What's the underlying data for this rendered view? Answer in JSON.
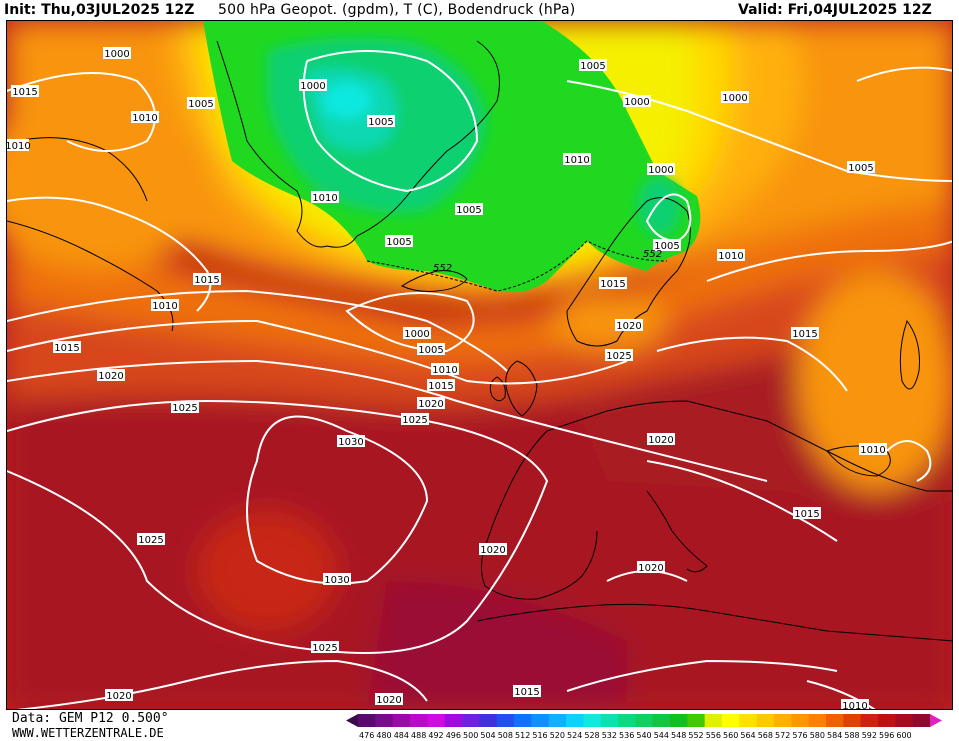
{
  "header": {
    "init": "Init: Thu,03JUL2025 12Z",
    "title": "500 hPa Geopot. (gpdm), T (C), Bodendruck (hPa)",
    "valid": "Valid: Fri,04JUL2025 12Z"
  },
  "footer": {
    "data_source": "Data: GEM P12 0.500°",
    "website": "WWW.WETTERZENTRALE.DE"
  },
  "legend": {
    "ticks": [
      "476",
      "480",
      "484",
      "488",
      "492",
      "496",
      "500",
      "504",
      "508",
      "512",
      "516",
      "520",
      "524",
      "528",
      "532",
      "536",
      "540",
      "544",
      "548",
      "552",
      "556",
      "560",
      "564",
      "568",
      "572",
      "576",
      "580",
      "584",
      "588",
      "592",
      "596",
      "600"
    ],
    "colors": [
      "#3c0a4a",
      "#5a0a6e",
      "#7a0a8c",
      "#9a0aa8",
      "#b80ac8",
      "#d00ae0",
      "#a00ae0",
      "#7020e0",
      "#4030e0",
      "#2050f0",
      "#1070ff",
      "#1090ff",
      "#10b0ff",
      "#10d0ff",
      "#10e8e0",
      "#10e0b0",
      "#10d880",
      "#10d060",
      "#10c840",
      "#10c020",
      "#40c800",
      "#e0f000",
      "#ffff00",
      "#ffe000",
      "#ffc800",
      "#ffb000",
      "#ff9800",
      "#ff8000",
      "#f06000",
      "#e04000",
      "#d02010",
      "#c01010",
      "#a80a20",
      "#900a30",
      "#e020c0"
    ]
  },
  "isobar_labels": [
    "1000",
    "1000",
    "1000",
    "1000",
    "1000",
    "1000",
    "1005",
    "1005",
    "1005",
    "1005",
    "1005",
    "1005",
    "1005",
    "1005",
    "1010",
    "1010",
    "1010",
    "1010",
    "1010",
    "1010",
    "1010",
    "1010",
    "1010",
    "1015",
    "1015",
    "1015",
    "1015",
    "1015",
    "1015",
    "1015",
    "1015",
    "1020",
    "1020",
    "1020",
    "1020",
    "1020",
    "1020",
    "1020",
    "1020",
    "1025",
    "1025",
    "1025",
    "1025",
    "1025",
    "1030",
    "1030"
  ],
  "geopotential_labels": [
    "552",
    "552"
  ]
}
